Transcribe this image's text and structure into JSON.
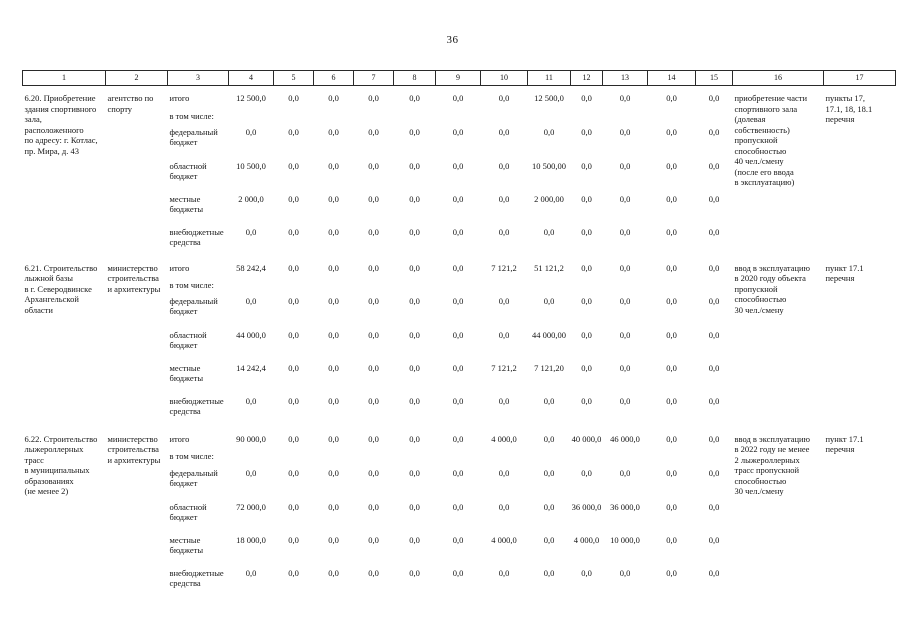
{
  "page": {
    "number": "36"
  },
  "table": {
    "header_cols": [
      "1",
      "2",
      "3",
      "4",
      "5",
      "6",
      "7",
      "8",
      "9",
      "10",
      "11",
      "12",
      "13",
      "14",
      "15",
      "16",
      "17"
    ],
    "sections": [
      {
        "activity": "6.20. Приобретение\nздания спортивного\nзала,\nрасположенного\nпо адресу: г. Котлас,\nпр. Мира, д. 43",
        "executor": "агентство по\nспорту",
        "rows": [
          {
            "label": "итого",
            "values": [
              "12 500,0",
              "0,0",
              "0,0",
              "0,0",
              "0,0",
              "0,0",
              "0,0",
              "12 500,0",
              "0,0",
              "0,0",
              "0,0",
              "0,0"
            ]
          },
          {
            "label": "в том числе:",
            "values": []
          },
          {
            "label": "федеральный\nбюджет",
            "values": [
              "0,0",
              "0,0",
              "0,0",
              "0,0",
              "0,0",
              "0,0",
              "0,0",
              "0,0",
              "0,0",
              "0,0",
              "0,0",
              "0,0"
            ]
          },
          {
            "label": "областной\nбюджет",
            "values": [
              "10 500,0",
              "0,0",
              "0,0",
              "0,0",
              "0,0",
              "0,0",
              "0,0",
              "10 500,00",
              "0,0",
              "0,0",
              "0,0",
              "0,0"
            ]
          },
          {
            "label": "местные\nбюджеты",
            "values": [
              "2 000,0",
              "0,0",
              "0,0",
              "0,0",
              "0,0",
              "0,0",
              "0,0",
              "2 000,00",
              "0,0",
              "0,0",
              "0,0",
              "0,0"
            ]
          },
          {
            "label": "внебюджетные\nсредства",
            "values": [
              "0,0",
              "0,0",
              "0,0",
              "0,0",
              "0,0",
              "0,0",
              "0,0",
              "0,0",
              "0,0",
              "0,0",
              "0,0",
              "0,0"
            ]
          }
        ],
        "result": "приобретение части\nспортивного зала\n(долевая\nсобственность)\nпропускной\nспособностью\n40 чел./смену\n(после его ввода\nв эксплуатацию)",
        "reference": "пункты 17,\n17.1, 18, 18.1\nперечня"
      },
      {
        "activity": "6.21. Строительство\nлыжной базы\nв г. Северодвинске\nАрхангельской\nобласти",
        "executor": "министерство\nстроительства\nи архитектуры",
        "rows": [
          {
            "label": "итого",
            "values": [
              "58 242,4",
              "0,0",
              "0,0",
              "0,0",
              "0,0",
              "0,0",
              "7 121,2",
              "51 121,2",
              "0,0",
              "0,0",
              "0,0",
              "0,0"
            ]
          },
          {
            "label": "в том числе:",
            "values": []
          },
          {
            "label": "федеральный\nбюджет",
            "values": [
              "0,0",
              "0,0",
              "0,0",
              "0,0",
              "0,0",
              "0,0",
              "0,0",
              "0,0",
              "0,0",
              "0,0",
              "0,0",
              "0,0"
            ]
          },
          {
            "label": "областной\nбюджет",
            "values": [
              "44 000,0",
              "0,0",
              "0,0",
              "0,0",
              "0,0",
              "0,0",
              "0,0",
              "44 000,00",
              "0,0",
              "0,0",
              "0,0",
              "0,0"
            ]
          },
          {
            "label": "местные\nбюджеты",
            "values": [
              "14 242,4",
              "0,0",
              "0,0",
              "0,0",
              "0,0",
              "0,0",
              "7 121,2",
              "7 121,20",
              "0,0",
              "0,0",
              "0,0",
              "0,0"
            ]
          },
          {
            "label": "внебюджетные\nсредства",
            "values": [
              "0,0",
              "0,0",
              "0,0",
              "0,0",
              "0,0",
              "0,0",
              "0,0",
              "0,0",
              "0,0",
              "0,0",
              "0,0",
              "0,0"
            ]
          }
        ],
        "result": "ввод в эксплуатацию\nв 2020 году объекта\nпропускной\nспособностью\n30 чел./смену",
        "reference": "пункт 17.1\nперечня"
      },
      {
        "activity": "6.22. Строительство\nлыжероллерных\nтрасс\nв муниципальных\nобразованиях\n(не менее 2)",
        "executor": "министерство\nстроительства\nи архитектуры",
        "rows": [
          {
            "label": "итого",
            "values": [
              "90 000,0",
              "0,0",
              "0,0",
              "0,0",
              "0,0",
              "0,0",
              "4 000,0",
              "0,0",
              "40 000,0",
              "46 000,0",
              "0,0",
              "0,0"
            ]
          },
          {
            "label": "в том числе:",
            "values": []
          },
          {
            "label": "федеральный\nбюджет",
            "values": [
              "0,0",
              "0,0",
              "0,0",
              "0,0",
              "0,0",
              "0,0",
              "0,0",
              "0,0",
              "0,0",
              "0,0",
              "0,0",
              "0,0"
            ]
          },
          {
            "label": "областной\nбюджет",
            "values": [
              "72 000,0",
              "0,0",
              "0,0",
              "0,0",
              "0,0",
              "0,0",
              "0,0",
              "0,0",
              "36 000,0",
              "36 000,0",
              "0,0",
              "0,0"
            ]
          },
          {
            "label": "местные\nбюджеты",
            "values": [
              "18 000,0",
              "0,0",
              "0,0",
              "0,0",
              "0,0",
              "0,0",
              "4 000,0",
              "0,0",
              "4 000,0",
              "10 000,0",
              "0,0",
              "0,0"
            ]
          },
          {
            "label": "внебюджетные\nсредства",
            "values": [
              "0,0",
              "0,0",
              "0,0",
              "0,0",
              "0,0",
              "0,0",
              "0,0",
              "0,0",
              "0,0",
              "0,0",
              "0,0",
              "0,0"
            ]
          }
        ],
        "result": "ввод в эксплуатацию\nв 2022 году не менее\n2 лыжероллерных\nтрасс пропускной\nспособностью\n30 чел./смену",
        "reference": "пункт 17.1\nперечня"
      }
    ]
  }
}
